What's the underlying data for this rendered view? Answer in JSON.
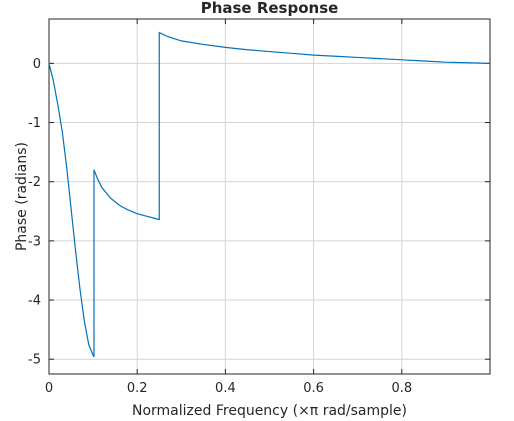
{
  "chart_data": {
    "type": "line",
    "title": "Phase Response",
    "xlabel": "Normalized Frequency (×π rad/sample)",
    "ylabel": "Phase (radians)",
    "xlim": [
      0,
      1
    ],
    "ylim": [
      -5.25,
      0.75
    ],
    "xticks": [
      0,
      0.2,
      0.4,
      0.6,
      0.8
    ],
    "xtick_labels": [
      "0",
      "0.2",
      "0.4",
      "0.6",
      "0.8"
    ],
    "yticks": [
      0,
      -1,
      -2,
      -3,
      -4,
      -5
    ],
    "ytick_labels": [
      "0",
      "-1",
      "-2",
      "-3",
      "-4",
      "-5"
    ],
    "grid": true,
    "line_color": "#0072BD",
    "series": [
      {
        "x": [
          0,
          0.01,
          0.02,
          0.03,
          0.04,
          0.05,
          0.06,
          0.07,
          0.08,
          0.09,
          0.1,
          0.102,
          0.102,
          0.11,
          0.12,
          0.14,
          0.16,
          0.18,
          0.2,
          0.22,
          0.24,
          0.25,
          0.25,
          0.27,
          0.3,
          0.35,
          0.4,
          0.45,
          0.5,
          0.55,
          0.6,
          0.65,
          0.7,
          0.75,
          0.8,
          0.85,
          0.9,
          0.95,
          1.0
        ],
        "y": [
          0,
          -0.3,
          -0.7,
          -1.15,
          -1.75,
          -2.45,
          -3.15,
          -3.8,
          -4.35,
          -4.75,
          -4.93,
          -4.96,
          -1.8,
          -1.95,
          -2.1,
          -2.28,
          -2.4,
          -2.48,
          -2.54,
          -2.58,
          -2.62,
          -2.64,
          0.52,
          0.45,
          0.38,
          0.32,
          0.27,
          0.23,
          0.2,
          0.17,
          0.14,
          0.12,
          0.1,
          0.08,
          0.06,
          0.04,
          0.02,
          0.01,
          0.0
        ]
      }
    ]
  }
}
